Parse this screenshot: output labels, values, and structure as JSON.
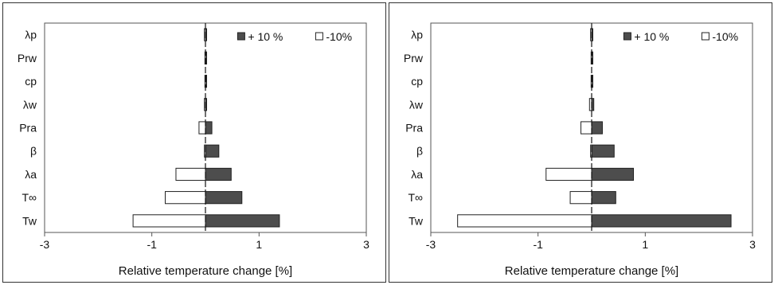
{
  "chart_data": [
    {
      "type": "bar",
      "orientation": "horizontal",
      "categories": [
        "λp",
        "Prw",
        "cp",
        "λw",
        "Pra",
        "β",
        "λa",
        "T∞",
        "Tw"
      ],
      "series": [
        {
          "name": "+ 10 %",
          "color": "#4d4d4d",
          "values": [
            0.02,
            0.01,
            0.01,
            0.02,
            0.12,
            0.25,
            0.48,
            0.68,
            1.38
          ]
        },
        {
          "name": "-10%",
          "color": "#ffffff",
          "values": [
            -0.02,
            -0.01,
            -0.01,
            -0.02,
            -0.12,
            -0.02,
            -0.55,
            -0.75,
            -1.35
          ]
        }
      ],
      "xlim": [
        -3,
        3
      ],
      "xticks": [
        "-3",
        "-1",
        "1",
        "3"
      ],
      "xlabel": "Relative temperature change [%]",
      "ylabel": "",
      "grid": false,
      "legend_position": "top-right"
    },
    {
      "type": "bar",
      "orientation": "horizontal",
      "categories": [
        "λp",
        "Prw",
        "cp",
        "λw",
        "Pra",
        "β",
        "λa",
        "T∞",
        "Tw"
      ],
      "series": [
        {
          "name": "+ 10 %",
          "color": "#4d4d4d",
          "values": [
            0.02,
            0.01,
            0.01,
            0.04,
            0.2,
            0.42,
            0.78,
            0.45,
            2.6
          ]
        },
        {
          "name": "-10%",
          "color": "#ffffff",
          "values": [
            -0.02,
            -0.01,
            -0.01,
            -0.04,
            -0.2,
            -0.02,
            -0.85,
            -0.4,
            -2.5
          ]
        }
      ],
      "xlim": [
        -3,
        3
      ],
      "xticks": [
        "-3",
        "-1",
        "1",
        "3"
      ],
      "xlabel": "Relative temperature change [%]",
      "ylabel": "",
      "grid": false,
      "legend_position": "top-right"
    }
  ]
}
